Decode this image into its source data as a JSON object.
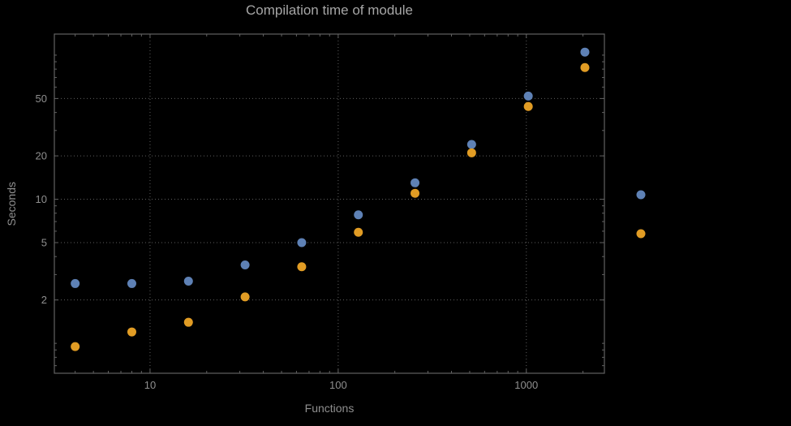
{
  "styles": {
    "background": "#000000",
    "title_color": "#a6a6a6",
    "label_color": "#8f8f8f",
    "tick_label_color": "#8f8f8f"
  },
  "chart_data": {
    "type": "scatter",
    "title": "Compilation time of module",
    "xlabel": "Functions",
    "ylabel": "Seconds",
    "xscale": "log",
    "yscale": "log",
    "xlim": [
      3.1,
      2600
    ],
    "ylim": [
      0.62,
      140
    ],
    "grid_on": true,
    "grid": {
      "style": "dotted",
      "color": "#5e5e5e"
    },
    "frame_color": "#626262",
    "marker_diameter": 11,
    "x": [
      4,
      8,
      16,
      32,
      64,
      128,
      256,
      512,
      1024,
      2048
    ],
    "series": [
      {
        "name": "series-blue",
        "color": "#5e81b5",
        "values": [
          2.6,
          2.6,
          2.7,
          3.5,
          5.0,
          7.8,
          13,
          24,
          52,
          105
        ]
      },
      {
        "name": "series-orange",
        "color": "#e19c24",
        "values": [
          0.95,
          1.2,
          1.4,
          2.1,
          3.4,
          5.9,
          11,
          21,
          44,
          82
        ]
      }
    ],
    "x_ticks": [
      {
        "value": 10,
        "label": "10"
      },
      {
        "value": 100,
        "label": "100"
      },
      {
        "value": 1000,
        "label": "1000"
      }
    ],
    "y_ticks": [
      {
        "value": 2,
        "label": "2"
      },
      {
        "value": 5,
        "label": "5"
      },
      {
        "value": 10,
        "label": "10"
      },
      {
        "value": 20,
        "label": "20"
      },
      {
        "value": 50,
        "label": "50"
      }
    ],
    "legend_markers": [
      {
        "name": "legend-marker-blue",
        "color": "#5e81b5"
      },
      {
        "name": "legend-marker-orange",
        "color": "#e19c24"
      }
    ]
  }
}
